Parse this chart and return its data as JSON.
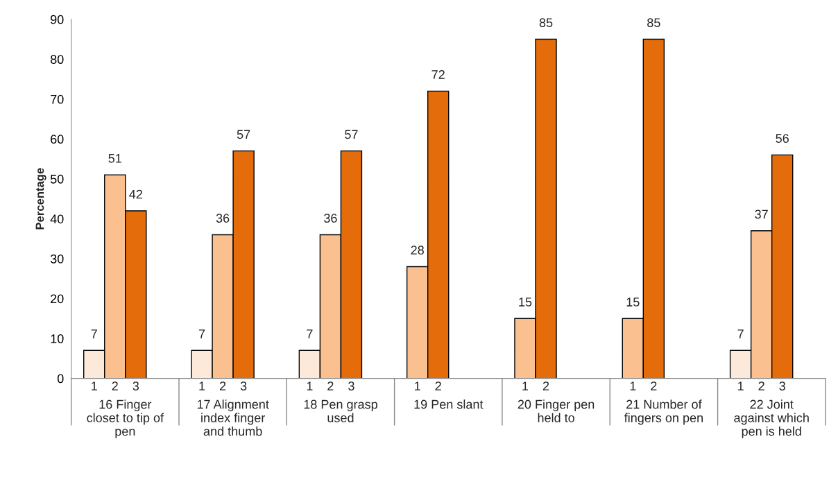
{
  "chart_data": {
    "type": "bar",
    "ylabel": "Percentage",
    "categories": [
      "16 Finger\ncloset to tip of\npen",
      "17 Alignment\nindex finger\nand thumb",
      "18 Pen grasp\nused",
      "19 Pen slant",
      "20 Finger pen\nheld to",
      "21 Number of\nfingers on pen",
      "22 Joint\nagainst which\npen is held"
    ],
    "series": [
      {
        "color": "#fde9d9",
        "values": [
          7,
          7,
          7,
          null,
          null,
          null,
          7
        ]
      },
      {
        "color": "#fac090",
        "values": [
          51,
          36,
          36,
          28,
          15,
          15,
          37
        ]
      },
      {
        "color": "#e46c0a",
        "values": [
          42,
          57,
          57,
          72,
          85,
          85,
          56
        ]
      }
    ],
    "data_labels": true,
    "ylim": [
      0,
      90
    ],
    "yticks": [
      0,
      10,
      20,
      30,
      40,
      50,
      60,
      70,
      80,
      90
    ],
    "grid": false,
    "annotations": [
      "1",
      "2",
      "3",
      "1",
      "2",
      "3",
      "1",
      "2",
      "3",
      "1",
      "2",
      "1",
      "2",
      "1",
      "2",
      "1",
      "2",
      "3"
    ]
  }
}
